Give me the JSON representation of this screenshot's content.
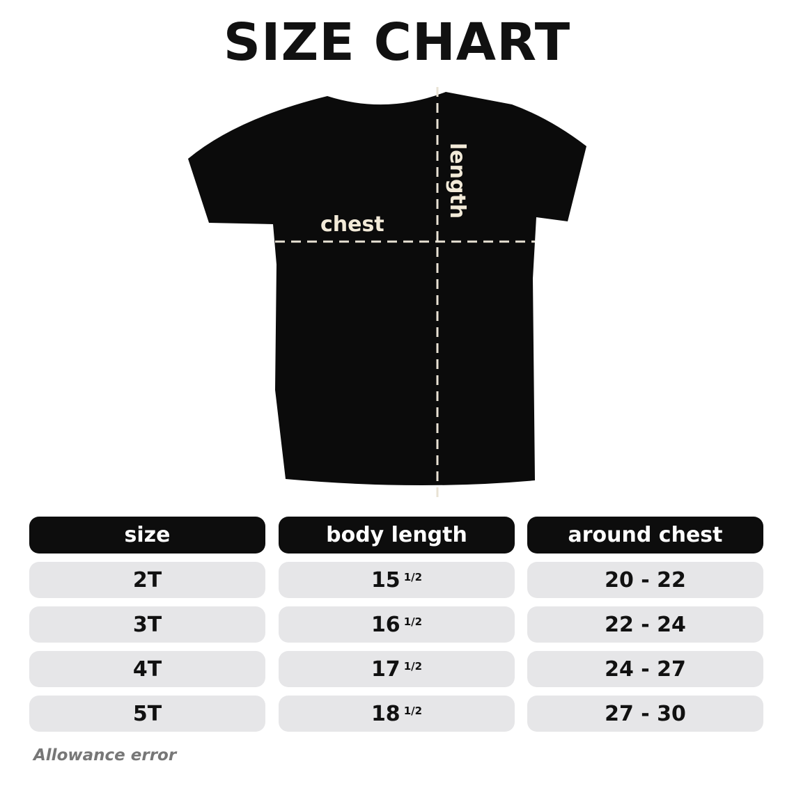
{
  "title": "SIZE CHART",
  "diagram": {
    "chest_label": "chest",
    "length_label": "length",
    "shirt_color": "#0b0b0b",
    "label_color": "#f2ead8"
  },
  "table": {
    "headers": [
      "size",
      "body length",
      "around chest"
    ],
    "rows": [
      {
        "size": "2T",
        "length": "15",
        "length_frac": "1/2",
        "chest": "20 - 22"
      },
      {
        "size": "3T",
        "length": "16",
        "length_frac": "1/2",
        "chest": "22 - 24"
      },
      {
        "size": "4T",
        "length": "17",
        "length_frac": "1/2",
        "chest": "24 - 27"
      },
      {
        "size": "5T",
        "length": "18",
        "length_frac": "1/2",
        "chest": "27 - 30"
      }
    ]
  },
  "footnote": "Allowance error"
}
